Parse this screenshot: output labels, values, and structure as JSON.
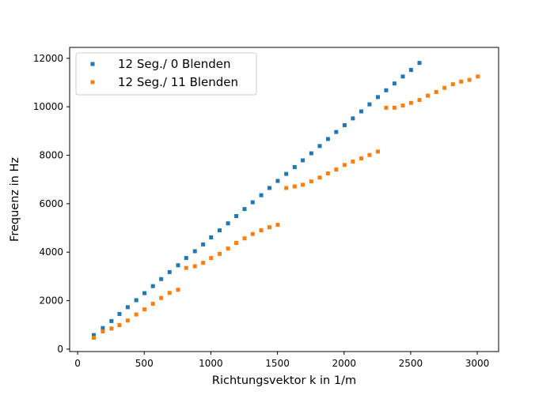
{
  "chart_data": {
    "type": "scatter",
    "title": "",
    "xlabel": "Richtungsvektor k in 1/m",
    "ylabel": "Frequenz in Hz",
    "xlim": [
      -60,
      3160
    ],
    "ylim": [
      -100,
      12450
    ],
    "xticks": [
      0,
      500,
      1000,
      1500,
      2000,
      2500,
      3000
    ],
    "yticks": [
      0,
      2000,
      4000,
      6000,
      8000,
      10000,
      12000
    ],
    "grid": false,
    "legend_position": "top-left",
    "series": [
      {
        "name": "12 Seg./ 0 Blenden",
        "color": "#1f77b4",
        "x": [
          121,
          189,
          254,
          314,
          376,
          440,
          502,
          565,
          627,
          690,
          754,
          815,
          880,
          942,
          1002,
          1066,
          1129,
          1191,
          1253,
          1314,
          1378,
          1440,
          1502,
          1566,
          1629,
          1690,
          1754,
          1817,
          1879,
          1941,
          2004,
          2066,
          2129,
          2191,
          2254,
          2316,
          2378,
          2441,
          2503,
          2566
        ],
        "y": [
          580,
          870,
          1160,
          1450,
          1730,
          2020,
          2310,
          2600,
          2890,
          3180,
          3460,
          3760,
          4040,
          4320,
          4610,
          4900,
          5190,
          5490,
          5780,
          6060,
          6350,
          6650,
          6940,
          7230,
          7510,
          7790,
          8080,
          8380,
          8670,
          8960,
          9240,
          9520,
          9810,
          10100,
          10400,
          10680,
          10960,
          11250,
          11520,
          11810
        ]
      },
      {
        "name": "12 Seg./ 11 Blenden",
        "color": "#ff7f0e",
        "x": [
          121,
          189,
          254,
          314,
          376,
          440,
          502,
          565,
          627,
          690,
          754,
          815,
          880,
          942,
          1002,
          1066,
          1129,
          1191,
          1253,
          1314,
          1378,
          1440,
          1502,
          1566,
          1629,
          1690,
          1754,
          1817,
          1879,
          1941,
          2004,
          2066,
          2129,
          2191,
          2254,
          2316,
          2378,
          2441,
          2503,
          2566,
          2629,
          2692,
          2754,
          2817,
          2879,
          2941,
          3004
        ],
        "y": [
          470,
          730,
          850,
          990,
          1180,
          1430,
          1640,
          1870,
          2110,
          2320,
          2450,
          3350,
          3420,
          3560,
          3760,
          3930,
          4150,
          4380,
          4570,
          4750,
          4900,
          5030,
          5130,
          6650,
          6710,
          6780,
          6920,
          7080,
          7250,
          7410,
          7600,
          7740,
          7870,
          8010,
          8150,
          9960,
          9960,
          10050,
          10160,
          10280,
          10460,
          10610,
          10780,
          10930,
          11040,
          11110,
          11250
        ]
      }
    ]
  }
}
